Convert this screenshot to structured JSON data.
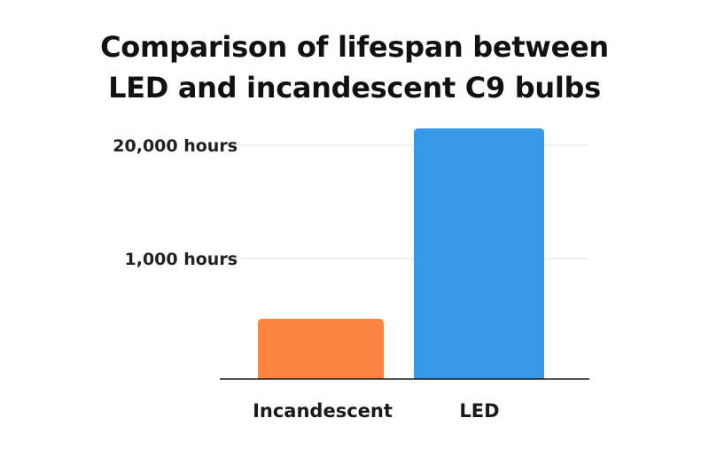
{
  "chart_data": {
    "type": "bar",
    "title_lines": [
      "Comparison of lifespan between",
      "LED and incandescent C9 bulbs"
    ],
    "categories": [
      "Incandescent",
      "LED"
    ],
    "series": [
      {
        "values": [
          500,
          25000
        ]
      }
    ],
    "colors": [
      "#fd8340",
      "#3799ea"
    ],
    "y_axis": {
      "ticks": [
        {
          "value": 1000,
          "label": "1,000 hours"
        },
        {
          "value": 20000,
          "label": "20,000 hours"
        }
      ],
      "scale": "nonlinear",
      "gridlines": true
    },
    "xlabel": "",
    "ylabel": "",
    "legend": "none"
  }
}
